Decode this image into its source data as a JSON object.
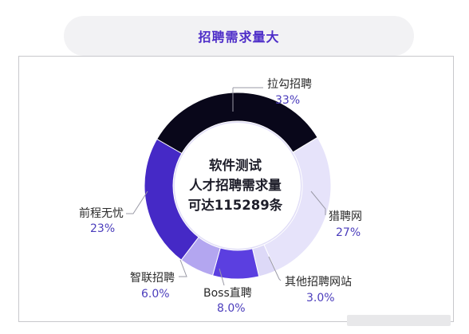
{
  "header": {
    "title": "招聘需求量大"
  },
  "center": {
    "line1": "软件测试",
    "line2": "人才招聘需求量",
    "line3": "可达115289条"
  },
  "chart_data": {
    "type": "pie",
    "variant": "donut",
    "slices": [
      {
        "name": "拉勾招聘",
        "value": 33,
        "label": "33%",
        "color": "#09071a"
      },
      {
        "name": "猎聘网",
        "value": 27,
        "label": "27%",
        "color": "#e6e3fa"
      },
      {
        "name": "其他招聘网站",
        "value": 3,
        "label": "3.0%",
        "color": "#ddd9f7"
      },
      {
        "name": "Boss直聘",
        "value": 8,
        "label": "8.0%",
        "color": "#5b3fe0"
      },
      {
        "name": "智联招聘",
        "value": 6,
        "label": "6.0%",
        "color": "#b3a6f0"
      },
      {
        "name": "前程无忧",
        "value": 23,
        "label": "23%",
        "color": "#4529c6"
      }
    ]
  }
}
